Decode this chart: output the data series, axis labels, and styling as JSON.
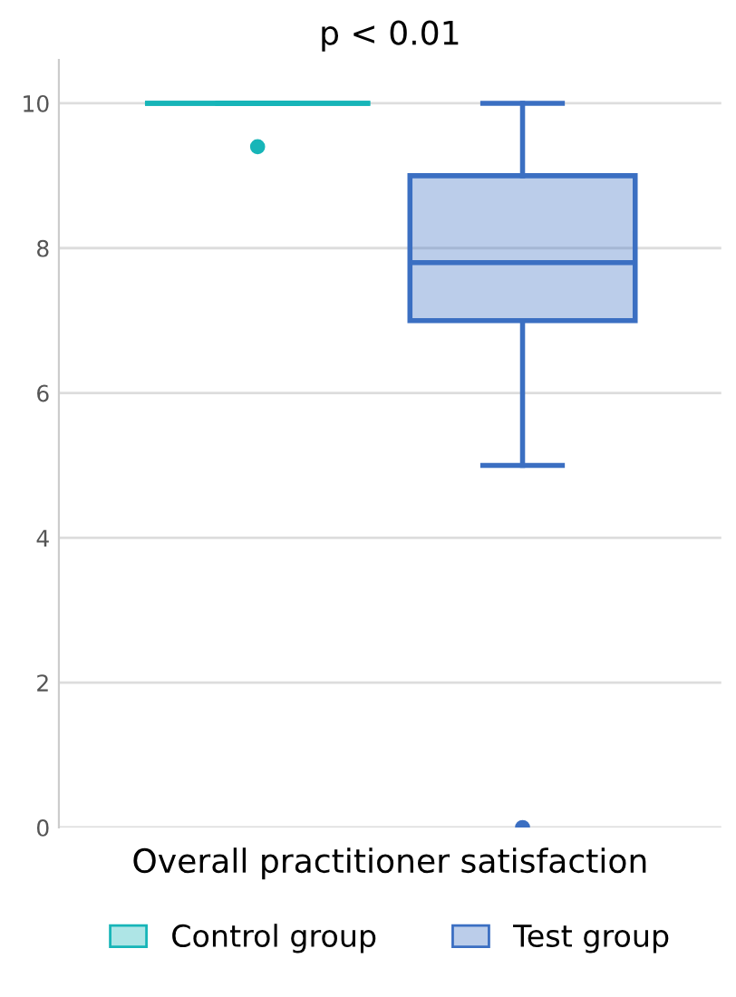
{
  "chart_data": {
    "type": "box",
    "title": "p < 0.01",
    "categories": [
      "Overall practitioner satisfaction"
    ],
    "series": [
      {
        "name": "Control group",
        "color": "#17b5b8",
        "boxes": [
          {
            "low": 10,
            "q1": 10,
            "median": 10,
            "q3": 10,
            "high": 10,
            "outliers": [
              9.4
            ]
          }
        ]
      },
      {
        "name": "Test group",
        "color": "#3b6fc2",
        "boxes": [
          {
            "low": 5,
            "q1": 7,
            "median": 7.8,
            "q3": 9,
            "high": 10,
            "outliers": [
              0
            ]
          }
        ]
      }
    ],
    "ylim": [
      0,
      10.6
    ],
    "yticks": [
      0,
      2,
      4,
      6,
      8,
      10
    ],
    "grid": "y",
    "legend": "bottom"
  }
}
